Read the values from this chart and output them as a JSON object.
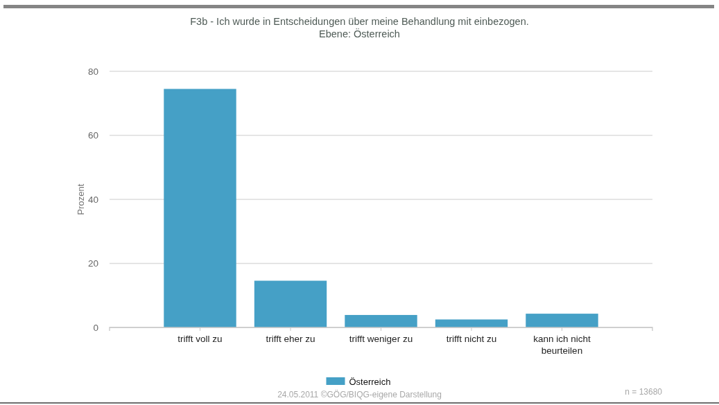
{
  "chart_data": {
    "type": "bar",
    "title": "F3b - Ich wurde in Entscheidungen über meine Behandlung mit einbezogen.",
    "subtitle": "Ebene: Österreich",
    "ylabel": "Prozent",
    "categories": [
      "trifft voll zu",
      "trifft eher zu",
      "trifft weniger zu",
      "trifft nicht zu",
      "kann ich nicht beurteilen"
    ],
    "series": [
      {
        "name": "Österreich",
        "color": "#45a0c6",
        "values": [
          74.5,
          14.6,
          3.9,
          2.5,
          4.3
        ]
      }
    ],
    "ylim": [
      0,
      80
    ],
    "yticks": [
      0,
      20,
      40,
      60,
      80
    ],
    "grid": "y",
    "legend": "bottom",
    "annotations": [
      "24.05.2011 ©GÖG/BIQG-eigene Darstellung",
      "n = 13680"
    ]
  }
}
